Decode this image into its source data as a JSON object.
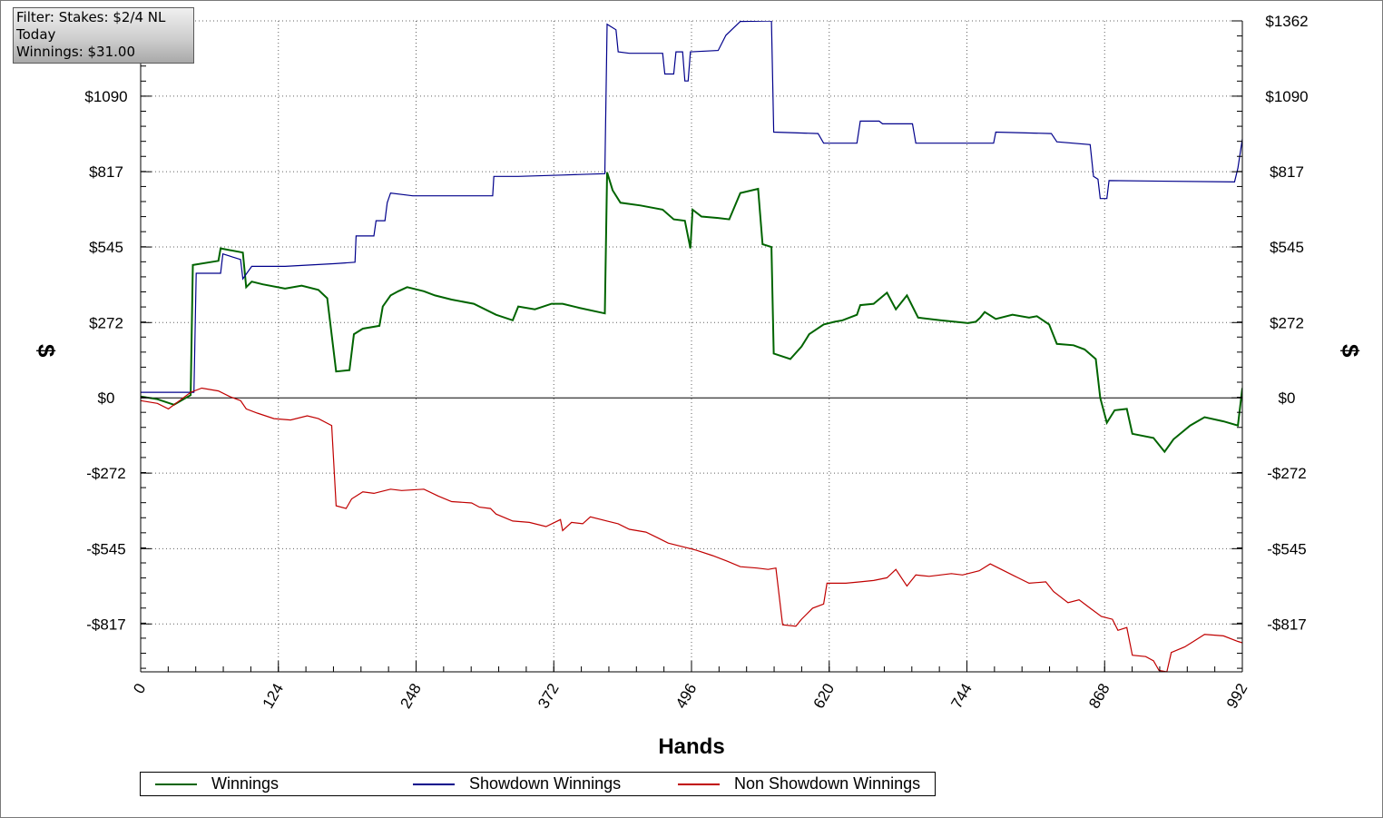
{
  "filter": {
    "lines": [
      "Filter: Stakes: $2/4 NL",
      "Today",
      "Winnings: $31.00"
    ]
  },
  "chart_data": {
    "type": "line",
    "xlabel": "Hands",
    "ylabel_left": "$",
    "ylabel_right": "$",
    "xlim": [
      0,
      992
    ],
    "ylim": [
      -990,
      1362
    ],
    "x_ticks": [
      0,
      124,
      248,
      372,
      496,
      620,
      744,
      868,
      992
    ],
    "x_tick_labels": [
      "0",
      "124",
      "248",
      "372",
      "496",
      "620",
      "744",
      "868",
      "992"
    ],
    "y_ticks_left": [
      1090,
      817,
      545,
      272,
      0,
      -272,
      -545,
      -817
    ],
    "y_tick_labels_left": [
      "$1090",
      "$817",
      "$545",
      "$272",
      "$0",
      "-$272",
      "-$545",
      "-$817"
    ],
    "y_ticks_right": [
      1362,
      1090,
      817,
      545,
      272,
      0,
      -272,
      -545,
      -817
    ],
    "y_tick_labels_right": [
      "$1362",
      "$1090",
      "$817",
      "$545",
      "$272",
      "$0",
      "-$272",
      "-$545",
      "-$817"
    ],
    "grid": true,
    "legend_position": "bottom",
    "series": [
      {
        "name": "Winnings",
        "color": "#006400",
        "points": [
          [
            0,
            5
          ],
          [
            15,
            -5
          ],
          [
            30,
            -25
          ],
          [
            45,
            10
          ],
          [
            47,
            480
          ],
          [
            70,
            495
          ],
          [
            72,
            540
          ],
          [
            92,
            525
          ],
          [
            95,
            400
          ],
          [
            100,
            420
          ],
          [
            110,
            410
          ],
          [
            130,
            395
          ],
          [
            145,
            405
          ],
          [
            160,
            390
          ],
          [
            168,
            360
          ],
          [
            176,
            95
          ],
          [
            188,
            100
          ],
          [
            192,
            230
          ],
          [
            200,
            250
          ],
          [
            215,
            260
          ],
          [
            218,
            330
          ],
          [
            225,
            370
          ],
          [
            232,
            385
          ],
          [
            240,
            400
          ],
          [
            255,
            385
          ],
          [
            265,
            370
          ],
          [
            280,
            355
          ],
          [
            300,
            340
          ],
          [
            320,
            300
          ],
          [
            335,
            280
          ],
          [
            340,
            330
          ],
          [
            355,
            320
          ],
          [
            370,
            340
          ],
          [
            380,
            340
          ],
          [
            395,
            325
          ],
          [
            418,
            305
          ],
          [
            420,
            815
          ],
          [
            425,
            750
          ],
          [
            432,
            705
          ],
          [
            450,
            695
          ],
          [
            470,
            680
          ],
          [
            480,
            645
          ],
          [
            490,
            640
          ],
          [
            495,
            540
          ],
          [
            497,
            680
          ],
          [
            505,
            655
          ],
          [
            520,
            650
          ],
          [
            530,
            645
          ],
          [
            540,
            740
          ],
          [
            556,
            755
          ],
          [
            560,
            555
          ],
          [
            568,
            545
          ],
          [
            570,
            160
          ],
          [
            585,
            140
          ],
          [
            595,
            185
          ],
          [
            602,
            230
          ],
          [
            615,
            265
          ],
          [
            625,
            275
          ],
          [
            632,
            280
          ],
          [
            645,
            300
          ],
          [
            648,
            335
          ],
          [
            660,
            340
          ],
          [
            672,
            380
          ],
          [
            680,
            320
          ],
          [
            690,
            370
          ],
          [
            700,
            290
          ],
          [
            720,
            280
          ],
          [
            745,
            270
          ],
          [
            752,
            275
          ],
          [
            756,
            290
          ],
          [
            760,
            310
          ],
          [
            770,
            285
          ],
          [
            785,
            300
          ],
          [
            800,
            290
          ],
          [
            807,
            295
          ],
          [
            818,
            265
          ],
          [
            825,
            195
          ],
          [
            840,
            190
          ],
          [
            850,
            175
          ],
          [
            860,
            140
          ],
          [
            864,
            0
          ],
          [
            870,
            -90
          ],
          [
            877,
            -45
          ],
          [
            888,
            -40
          ],
          [
            893,
            -130
          ],
          [
            912,
            -145
          ],
          [
            922,
            -195
          ],
          [
            930,
            -150
          ],
          [
            945,
            -100
          ],
          [
            958,
            -70
          ],
          [
            975,
            -85
          ],
          [
            988,
            -100
          ],
          [
            992,
            35
          ]
        ]
      },
      {
        "name": "Showdown Winnings",
        "color": "#00008b",
        "points": [
          [
            0,
            20
          ],
          [
            48,
            20
          ],
          [
            50,
            450
          ],
          [
            72,
            450
          ],
          [
            74,
            520
          ],
          [
            90,
            500
          ],
          [
            92,
            430
          ],
          [
            100,
            475
          ],
          [
            130,
            475
          ],
          [
            175,
            485
          ],
          [
            193,
            490
          ],
          [
            194,
            585
          ],
          [
            210,
            585
          ],
          [
            212,
            640
          ],
          [
            220,
            640
          ],
          [
            222,
            705
          ],
          [
            225,
            740
          ],
          [
            245,
            730
          ],
          [
            275,
            730
          ],
          [
            317,
            730
          ],
          [
            318,
            800
          ],
          [
            340,
            800
          ],
          [
            380,
            805
          ],
          [
            418,
            810
          ],
          [
            420,
            1350
          ],
          [
            428,
            1330
          ],
          [
            430,
            1250
          ],
          [
            440,
            1245
          ],
          [
            470,
            1245
          ],
          [
            472,
            1170
          ],
          [
            480,
            1170
          ],
          [
            482,
            1250
          ],
          [
            488,
            1250
          ],
          [
            490,
            1145
          ],
          [
            493,
            1145
          ],
          [
            495,
            1250
          ],
          [
            520,
            1255
          ],
          [
            527,
            1310
          ],
          [
            540,
            1360
          ],
          [
            568,
            1362
          ],
          [
            570,
            960
          ],
          [
            610,
            955
          ],
          [
            615,
            920
          ],
          [
            645,
            920
          ],
          [
            648,
            1000
          ],
          [
            665,
            1000
          ],
          [
            668,
            990
          ],
          [
            695,
            990
          ],
          [
            698,
            920
          ],
          [
            768,
            920
          ],
          [
            770,
            960
          ],
          [
            820,
            955
          ],
          [
            825,
            925
          ],
          [
            855,
            915
          ],
          [
            858,
            800
          ],
          [
            862,
            790
          ],
          [
            864,
            720
          ],
          [
            870,
            720
          ],
          [
            872,
            785
          ],
          [
            985,
            780
          ],
          [
            988,
            830
          ],
          [
            992,
            935
          ]
        ]
      },
      {
        "name": "Non Showdown Winnings",
        "color": "#c00000",
        "points": [
          [
            0,
            -10
          ],
          [
            15,
            -20
          ],
          [
            25,
            -40
          ],
          [
            35,
            -10
          ],
          [
            45,
            20
          ],
          [
            55,
            35
          ],
          [
            70,
            25
          ],
          [
            80,
            5
          ],
          [
            90,
            -10
          ],
          [
            95,
            -40
          ],
          [
            105,
            -55
          ],
          [
            120,
            -75
          ],
          [
            135,
            -80
          ],
          [
            150,
            -65
          ],
          [
            160,
            -75
          ],
          [
            172,
            -100
          ],
          [
            176,
            -390
          ],
          [
            185,
            -400
          ],
          [
            190,
            -365
          ],
          [
            200,
            -340
          ],
          [
            210,
            -345
          ],
          [
            225,
            -330
          ],
          [
            235,
            -335
          ],
          [
            255,
            -330
          ],
          [
            268,
            -355
          ],
          [
            280,
            -375
          ],
          [
            298,
            -380
          ],
          [
            305,
            -395
          ],
          [
            315,
            -400
          ],
          [
            320,
            -420
          ],
          [
            335,
            -445
          ],
          [
            350,
            -450
          ],
          [
            365,
            -465
          ],
          [
            378,
            -440
          ],
          [
            380,
            -480
          ],
          [
            388,
            -450
          ],
          [
            398,
            -455
          ],
          [
            405,
            -430
          ],
          [
            420,
            -445
          ],
          [
            430,
            -455
          ],
          [
            440,
            -475
          ],
          [
            455,
            -485
          ],
          [
            465,
            -505
          ],
          [
            475,
            -525
          ],
          [
            490,
            -540
          ],
          [
            500,
            -550
          ],
          [
            515,
            -570
          ],
          [
            528,
            -590
          ],
          [
            540,
            -610
          ],
          [
            555,
            -615
          ],
          [
            565,
            -620
          ],
          [
            572,
            -615
          ],
          [
            578,
            -820
          ],
          [
            590,
            -825
          ],
          [
            595,
            -800
          ],
          [
            605,
            -760
          ],
          [
            615,
            -745
          ],
          [
            618,
            -670
          ],
          [
            635,
            -670
          ],
          [
            648,
            -665
          ],
          [
            660,
            -660
          ],
          [
            672,
            -650
          ],
          [
            680,
            -620
          ],
          [
            690,
            -680
          ],
          [
            698,
            -640
          ],
          [
            710,
            -645
          ],
          [
            730,
            -635
          ],
          [
            740,
            -640
          ],
          [
            755,
            -625
          ],
          [
            765,
            -600
          ],
          [
            775,
            -620
          ],
          [
            790,
            -650
          ],
          [
            800,
            -670
          ],
          [
            815,
            -665
          ],
          [
            822,
            -700
          ],
          [
            835,
            -740
          ],
          [
            845,
            -730
          ],
          [
            855,
            -760
          ],
          [
            865,
            -790
          ],
          [
            875,
            -800
          ],
          [
            880,
            -840
          ],
          [
            888,
            -830
          ],
          [
            893,
            -930
          ],
          [
            905,
            -935
          ],
          [
            912,
            -950
          ],
          [
            917,
            -985
          ],
          [
            924,
            -990
          ],
          [
            928,
            -920
          ],
          [
            940,
            -900
          ],
          [
            948,
            -880
          ],
          [
            958,
            -855
          ],
          [
            975,
            -860
          ],
          [
            988,
            -880
          ],
          [
            992,
            -885
          ]
        ]
      }
    ]
  }
}
